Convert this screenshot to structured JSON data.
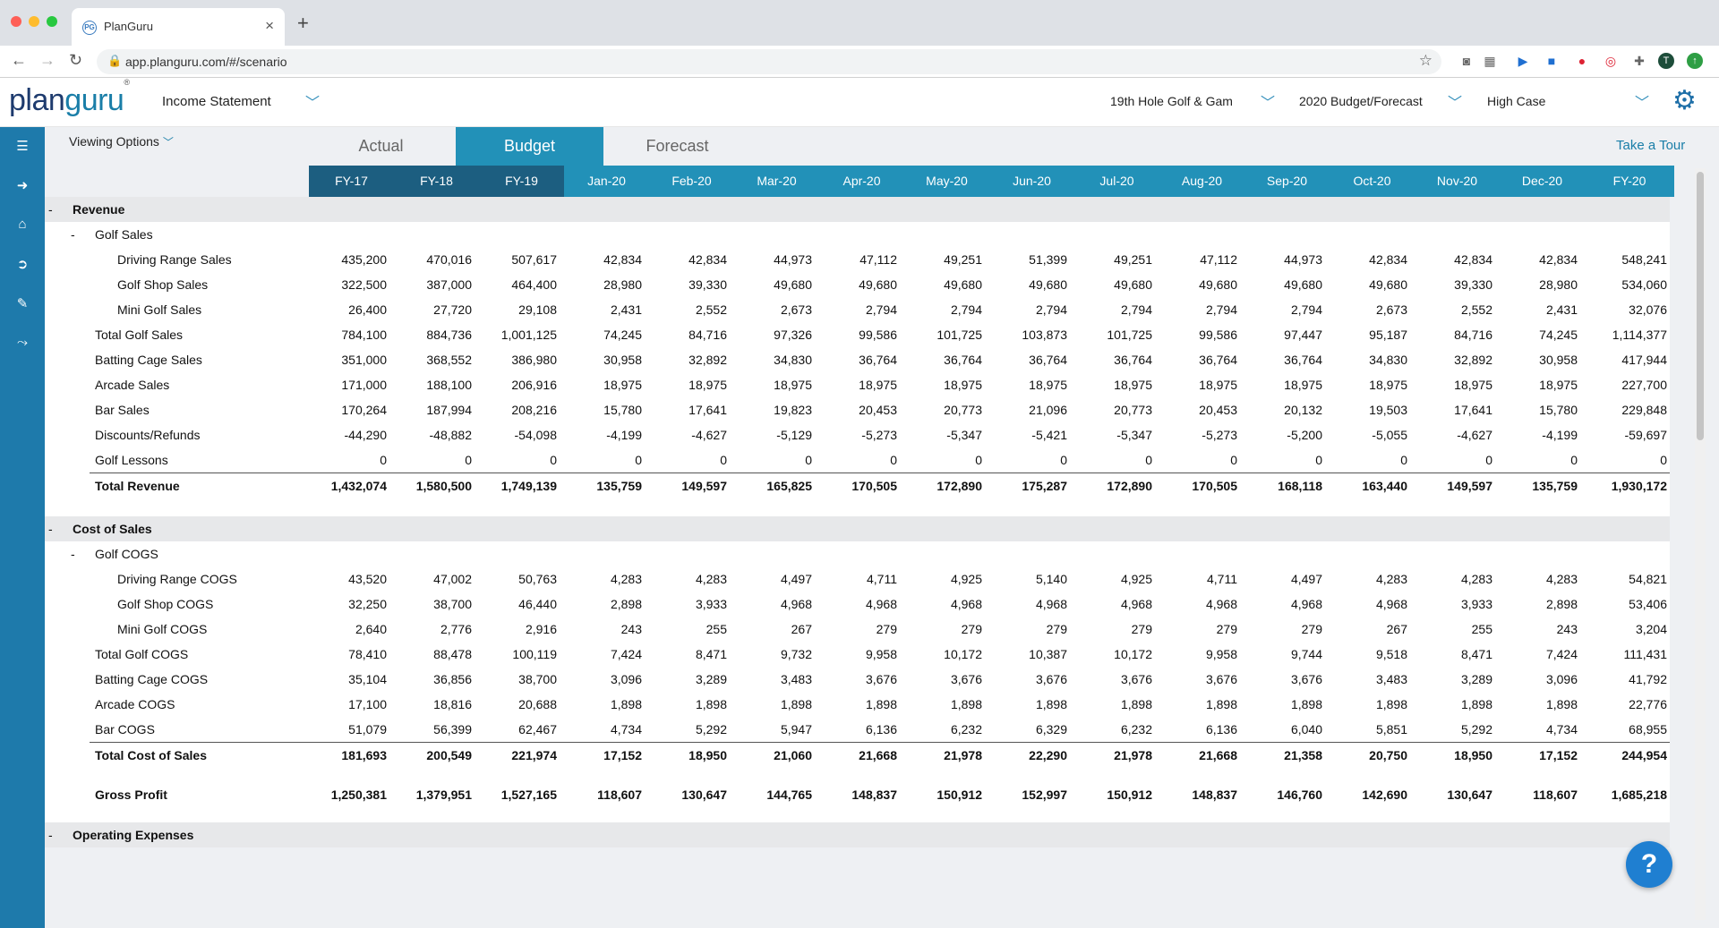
{
  "browser": {
    "tab_title": "PlanGuru",
    "url": "app.planguru.com/#/scenario",
    "new_tab": "+",
    "tab_close": "×",
    "profile_initial": "T"
  },
  "app": {
    "logo_plan": "plan",
    "logo_guru": "guru",
    "logo_mark": "®",
    "report_selector": "Income Statement",
    "company_selector": "19th Hole Golf & Gam",
    "scenario_selector": "2020 Budget/Forecast",
    "case_selector": "High Case",
    "viewing_options": "Viewing Options",
    "take_tour": "Take a Tour",
    "help": "?"
  },
  "view_tabs": [
    "Actual",
    "Budget",
    "Forecast"
  ],
  "columns": [
    "FY-17",
    "FY-18",
    "FY-19",
    "Jan-20",
    "Feb-20",
    "Mar-20",
    "Apr-20",
    "May-20",
    "Jun-20",
    "Jul-20",
    "Aug-20",
    "Sep-20",
    "Oct-20",
    "Nov-20",
    "Dec-20",
    "FY-20"
  ],
  "rows": {
    "revenue_header": {
      "toggle": "-",
      "label": "Revenue"
    },
    "golf_sales_header": {
      "toggle": "-",
      "label": "Golf Sales"
    },
    "driving_range_sales": {
      "label": "Driving Range Sales",
      "values": [
        "435,200",
        "470,016",
        "507,617",
        "42,834",
        "42,834",
        "44,973",
        "47,112",
        "49,251",
        "51,399",
        "49,251",
        "47,112",
        "44,973",
        "42,834",
        "42,834",
        "42,834",
        "548,241"
      ]
    },
    "golf_shop_sales": {
      "label": "Golf Shop Sales",
      "values": [
        "322,500",
        "387,000",
        "464,400",
        "28,980",
        "39,330",
        "49,680",
        "49,680",
        "49,680",
        "49,680",
        "49,680",
        "49,680",
        "49,680",
        "49,680",
        "39,330",
        "28,980",
        "534,060"
      ]
    },
    "mini_golf_sales": {
      "label": "Mini Golf Sales",
      "values": [
        "26,400",
        "27,720",
        "29,108",
        "2,431",
        "2,552",
        "2,673",
        "2,794",
        "2,794",
        "2,794",
        "2,794",
        "2,794",
        "2,794",
        "2,673",
        "2,552",
        "2,431",
        "32,076"
      ]
    },
    "total_golf_sales": {
      "label": "Total Golf Sales",
      "values": [
        "784,100",
        "884,736",
        "1,001,125",
        "74,245",
        "84,716",
        "97,326",
        "99,586",
        "101,725",
        "103,873",
        "101,725",
        "99,586",
        "97,447",
        "95,187",
        "84,716",
        "74,245",
        "1,114,377"
      ]
    },
    "batting_cage_sales": {
      "label": "Batting Cage Sales",
      "values": [
        "351,000",
        "368,552",
        "386,980",
        "30,958",
        "32,892",
        "34,830",
        "36,764",
        "36,764",
        "36,764",
        "36,764",
        "36,764",
        "36,764",
        "34,830",
        "32,892",
        "30,958",
        "417,944"
      ]
    },
    "arcade_sales": {
      "label": "Arcade Sales",
      "values": [
        "171,000",
        "188,100",
        "206,916",
        "18,975",
        "18,975",
        "18,975",
        "18,975",
        "18,975",
        "18,975",
        "18,975",
        "18,975",
        "18,975",
        "18,975",
        "18,975",
        "18,975",
        "227,700"
      ]
    },
    "bar_sales": {
      "label": "Bar Sales",
      "values": [
        "170,264",
        "187,994",
        "208,216",
        "15,780",
        "17,641",
        "19,823",
        "20,453",
        "20,773",
        "21,096",
        "20,773",
        "20,453",
        "20,132",
        "19,503",
        "17,641",
        "15,780",
        "229,848"
      ]
    },
    "discounts_refunds": {
      "label": "Discounts/Refunds",
      "values": [
        "-44,290",
        "-48,882",
        "-54,098",
        "-4,199",
        "-4,627",
        "-5,129",
        "-5,273",
        "-5,347",
        "-5,421",
        "-5,347",
        "-5,273",
        "-5,200",
        "-5,055",
        "-4,627",
        "-4,199",
        "-59,697"
      ]
    },
    "golf_lessons": {
      "label": "Golf Lessons",
      "values": [
        "0",
        "0",
        "0",
        "0",
        "0",
        "0",
        "0",
        "0",
        "0",
        "0",
        "0",
        "0",
        "0",
        "0",
        "0",
        "0"
      ]
    },
    "total_revenue": {
      "label": "Total Revenue",
      "values": [
        "1,432,074",
        "1,580,500",
        "1,749,139",
        "135,759",
        "149,597",
        "165,825",
        "170,505",
        "172,890",
        "175,287",
        "172,890",
        "170,505",
        "168,118",
        "163,440",
        "149,597",
        "135,759",
        "1,930,172"
      ]
    },
    "cos_header": {
      "toggle": "-",
      "label": "Cost of Sales"
    },
    "golf_cogs_header": {
      "toggle": "-",
      "label": "Golf COGS"
    },
    "driving_range_cogs": {
      "label": "Driving Range COGS",
      "values": [
        "43,520",
        "47,002",
        "50,763",
        "4,283",
        "4,283",
        "4,497",
        "4,711",
        "4,925",
        "5,140",
        "4,925",
        "4,711",
        "4,497",
        "4,283",
        "4,283",
        "4,283",
        "54,821"
      ]
    },
    "golf_shop_cogs": {
      "label": "Golf Shop COGS",
      "values": [
        "32,250",
        "38,700",
        "46,440",
        "2,898",
        "3,933",
        "4,968",
        "4,968",
        "4,968",
        "4,968",
        "4,968",
        "4,968",
        "4,968",
        "4,968",
        "3,933",
        "2,898",
        "53,406"
      ]
    },
    "mini_golf_cogs": {
      "label": "Mini Golf COGS",
      "values": [
        "2,640",
        "2,776",
        "2,916",
        "243",
        "255",
        "267",
        "279",
        "279",
        "279",
        "279",
        "279",
        "279",
        "267",
        "255",
        "243",
        "3,204"
      ]
    },
    "total_golf_cogs": {
      "label": "Total Golf COGS",
      "values": [
        "78,410",
        "88,478",
        "100,119",
        "7,424",
        "8,471",
        "9,732",
        "9,958",
        "10,172",
        "10,387",
        "10,172",
        "9,958",
        "9,744",
        "9,518",
        "8,471",
        "7,424",
        "111,431"
      ]
    },
    "batting_cage_cogs": {
      "label": "Batting Cage COGS",
      "values": [
        "35,104",
        "36,856",
        "38,700",
        "3,096",
        "3,289",
        "3,483",
        "3,676",
        "3,676",
        "3,676",
        "3,676",
        "3,676",
        "3,676",
        "3,483",
        "3,289",
        "3,096",
        "41,792"
      ]
    },
    "arcade_cogs": {
      "label": "Arcade COGS",
      "values": [
        "17,100",
        "18,816",
        "20,688",
        "1,898",
        "1,898",
        "1,898",
        "1,898",
        "1,898",
        "1,898",
        "1,898",
        "1,898",
        "1,898",
        "1,898",
        "1,898",
        "1,898",
        "22,776"
      ]
    },
    "bar_cogs": {
      "label": "Bar COGS",
      "values": [
        "51,079",
        "56,399",
        "62,467",
        "4,734",
        "5,292",
        "5,947",
        "6,136",
        "6,232",
        "6,329",
        "6,232",
        "6,136",
        "6,040",
        "5,851",
        "5,292",
        "4,734",
        "68,955"
      ]
    },
    "total_cost_of_sales": {
      "label": "Total Cost of Sales",
      "values": [
        "181,693",
        "200,549",
        "221,974",
        "17,152",
        "18,950",
        "21,060",
        "21,668",
        "21,978",
        "22,290",
        "21,978",
        "21,668",
        "21,358",
        "20,750",
        "18,950",
        "17,152",
        "244,954"
      ]
    },
    "gross_profit": {
      "label": "Gross Profit",
      "values": [
        "1,250,381",
        "1,379,951",
        "1,527,165",
        "118,607",
        "130,647",
        "144,765",
        "148,837",
        "150,912",
        "152,997",
        "150,912",
        "148,837",
        "146,760",
        "142,690",
        "130,647",
        "118,607",
        "1,685,218"
      ]
    },
    "opex_header": {
      "toggle": "-",
      "label": "Operating Expenses"
    }
  },
  "colors": {
    "historical_header": "#1c5e80",
    "current_header": "#2291b8",
    "rail": "#1e7aab",
    "help_button": "#1f7fd1"
  },
  "icons": {
    "rail": [
      "menu-icon",
      "logout-icon",
      "home-icon",
      "arrow-circle-icon",
      "wrench-icon",
      "chart-icon"
    ]
  }
}
